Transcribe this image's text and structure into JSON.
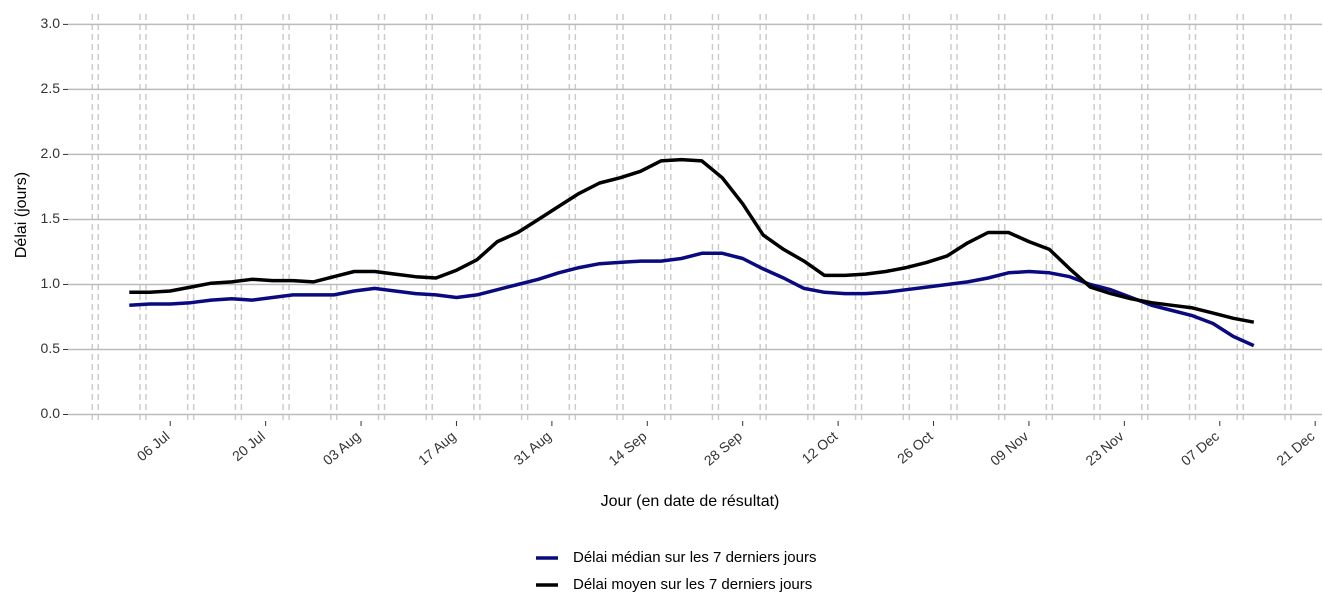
{
  "chart_data": {
    "type": "line",
    "xlabel": "Jour (en date de résultat)",
    "ylabel": "Délai (jours)",
    "x": [
      "30 Jun",
      "03 Jul",
      "06 Jul",
      "09 Jul",
      "12 Jul",
      "15 Jul",
      "18 Jul",
      "21 Jul",
      "24 Jul",
      "27 Jul",
      "30 Jul",
      "02 Aug",
      "05 Aug",
      "08 Aug",
      "11 Aug",
      "14 Aug",
      "17 Aug",
      "20 Aug",
      "23 Aug",
      "26 Aug",
      "29 Aug",
      "01 Sep",
      "04 Sep",
      "07 Sep",
      "10 Sep",
      "13 Sep",
      "16 Sep",
      "19 Sep",
      "22 Sep",
      "25 Sep",
      "28 Sep",
      "01 Oct",
      "04 Oct",
      "07 Oct",
      "10 Oct",
      "13 Oct",
      "16 Oct",
      "19 Oct",
      "22 Oct",
      "25 Oct",
      "28 Oct",
      "31 Oct",
      "03 Nov",
      "06 Nov",
      "09 Nov",
      "12 Nov",
      "15 Nov",
      "18 Nov",
      "21 Nov",
      "24 Nov",
      "27 Nov",
      "30 Nov",
      "03 Dec",
      "06 Dec",
      "09 Dec",
      "12 Dec"
    ],
    "series": [
      {
        "name": "Délai médian sur les 7 derniers jours",
        "color": "#0a0a80",
        "values": [
          0.84,
          0.85,
          0.85,
          0.86,
          0.88,
          0.89,
          0.88,
          0.9,
          0.92,
          0.92,
          0.92,
          0.95,
          0.97,
          0.95,
          0.93,
          0.92,
          0.9,
          0.92,
          0.96,
          1.0,
          1.04,
          1.09,
          1.13,
          1.16,
          1.17,
          1.18,
          1.18,
          1.2,
          1.24,
          1.24,
          1.2,
          1.12,
          1.05,
          0.97,
          0.94,
          0.93,
          0.93,
          0.94,
          0.96,
          0.98,
          1.0,
          1.02,
          1.05,
          1.09,
          1.1,
          1.09,
          1.06,
          1.0,
          0.96,
          0.9,
          0.84,
          0.8,
          0.76,
          0.7,
          0.6,
          0.53
        ]
      },
      {
        "name": "Délai moyen sur les 7 derniers jours",
        "color": "#000000",
        "values": [
          0.94,
          0.94,
          0.95,
          0.98,
          1.01,
          1.02,
          1.04,
          1.03,
          1.03,
          1.02,
          1.06,
          1.1,
          1.1,
          1.08,
          1.06,
          1.05,
          1.11,
          1.19,
          1.33,
          1.4,
          1.5,
          1.6,
          1.7,
          1.78,
          1.82,
          1.87,
          1.95,
          1.96,
          1.95,
          1.82,
          1.62,
          1.38,
          1.27,
          1.18,
          1.07,
          1.07,
          1.08,
          1.1,
          1.13,
          1.17,
          1.22,
          1.32,
          1.4,
          1.4,
          1.33,
          1.27,
          1.12,
          0.98,
          0.93,
          0.89,
          0.86,
          0.84,
          0.82,
          0.78,
          0.74,
          0.71
        ]
      }
    ],
    "xlim": [
      "21 Jun",
      "22 Dec"
    ],
    "xticks": [
      "06 Jul",
      "20 Jul",
      "03 Aug",
      "17 Aug",
      "31 Aug",
      "14 Sep",
      "28 Sep",
      "12 Oct",
      "26 Oct",
      "09 Nov",
      "23 Nov",
      "07 Dec",
      "21 Dec"
    ],
    "ylim": [
      -0.05,
      3.08
    ],
    "yticks": [
      {
        "value": 0,
        "label": "0.0"
      },
      {
        "value": 0.5,
        "label": "0.5"
      },
      {
        "value": 1,
        "label": "1.0"
      },
      {
        "value": 1.5,
        "label": "1.5"
      },
      {
        "value": 2,
        "label": "2.0"
      },
      {
        "value": 2.5,
        "label": "2.5"
      },
      {
        "value": 3,
        "label": "3.0"
      }
    ],
    "grid": true,
    "legend": "bottom"
  }
}
